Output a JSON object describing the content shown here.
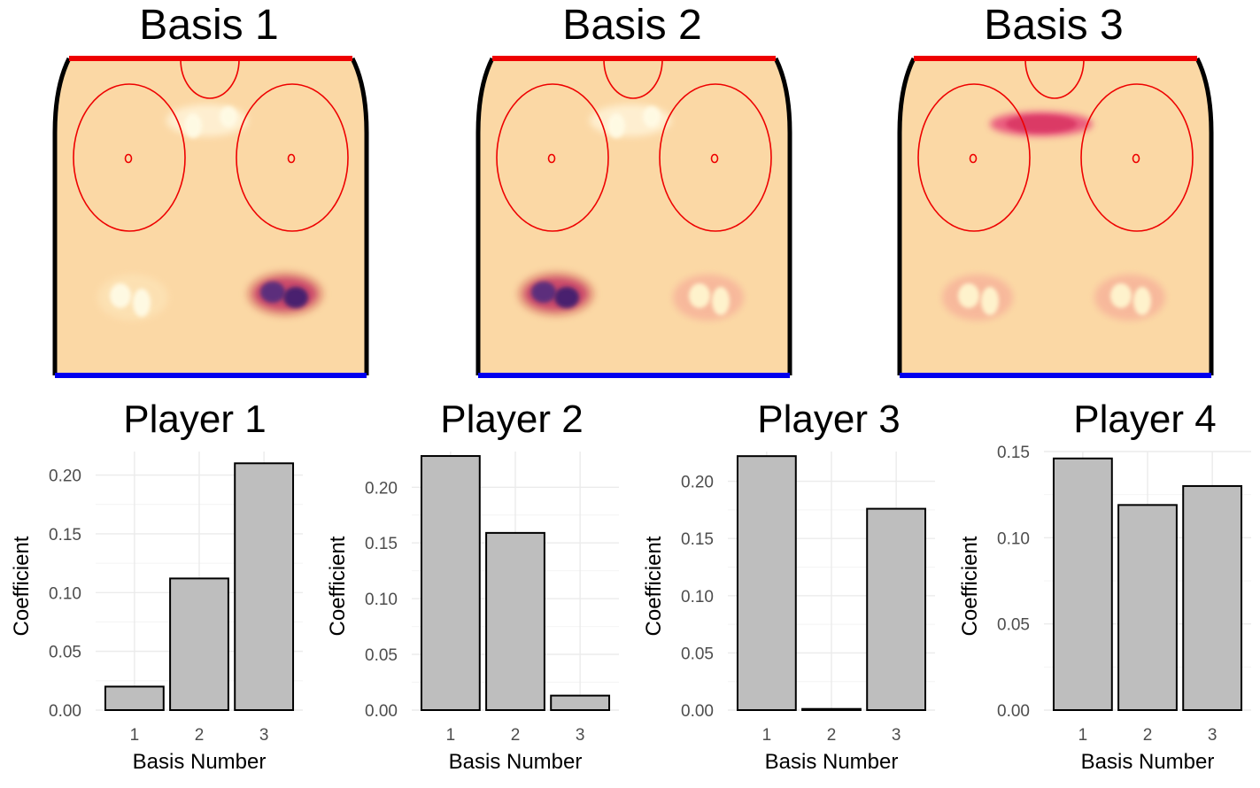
{
  "bases": [
    {
      "title": "Basis 1",
      "top_hot": "right"
    },
    {
      "title": "Basis 2",
      "top_hot": "left"
    },
    {
      "title": "Basis 3",
      "top_hot": "center"
    }
  ],
  "colors": {
    "rink_fill": "#fbd8a5",
    "goal_line_top": "#ee0000",
    "goal_line_bottom": "#0000ee",
    "circle_stroke": "#ee0000",
    "board": "#000000",
    "bar_fill": "#bebebe",
    "bar_stroke": "#000000",
    "grid": "#ebebeb",
    "tick_text": "#4d4d4d"
  },
  "chart_data": [
    {
      "type": "bar",
      "title": "Player 1",
      "xlabel": "Basis Number",
      "ylabel": "Coefficient",
      "categories": [
        "1",
        "2",
        "3"
      ],
      "values": [
        0.02,
        0.112,
        0.21
      ],
      "ylim": [
        0,
        0.22
      ],
      "yticks": [
        "0.00",
        "0.05",
        "0.10",
        "0.15",
        "0.20"
      ],
      "grid": true
    },
    {
      "type": "bar",
      "title": "Player 2",
      "xlabel": "Basis Number",
      "ylabel": "Coefficient",
      "categories": [
        "1",
        "2",
        "3"
      ],
      "values": [
        0.228,
        0.159,
        0.013
      ],
      "ylim": [
        0,
        0.232
      ],
      "yticks": [
        "0.00",
        "0.05",
        "0.10",
        "0.15",
        "0.20"
      ],
      "grid": true
    },
    {
      "type": "bar",
      "title": "Player 3",
      "xlabel": "Basis Number",
      "ylabel": "Coefficient",
      "categories": [
        "1",
        "2",
        "3"
      ],
      "values": [
        0.222,
        0.001,
        0.176
      ],
      "ylim": [
        0,
        0.226
      ],
      "yticks": [
        "0.00",
        "0.05",
        "0.10",
        "0.15",
        "0.20"
      ],
      "grid": true
    },
    {
      "type": "bar",
      "title": "Player 4",
      "xlabel": "Basis Number",
      "ylabel": "Coefficient",
      "categories": [
        "1",
        "2",
        "3"
      ],
      "values": [
        0.146,
        0.119,
        0.13
      ],
      "ylim": [
        0,
        0.15
      ],
      "yticks": [
        "0.00",
        "0.05",
        "0.10",
        "0.15"
      ],
      "grid": true
    }
  ]
}
